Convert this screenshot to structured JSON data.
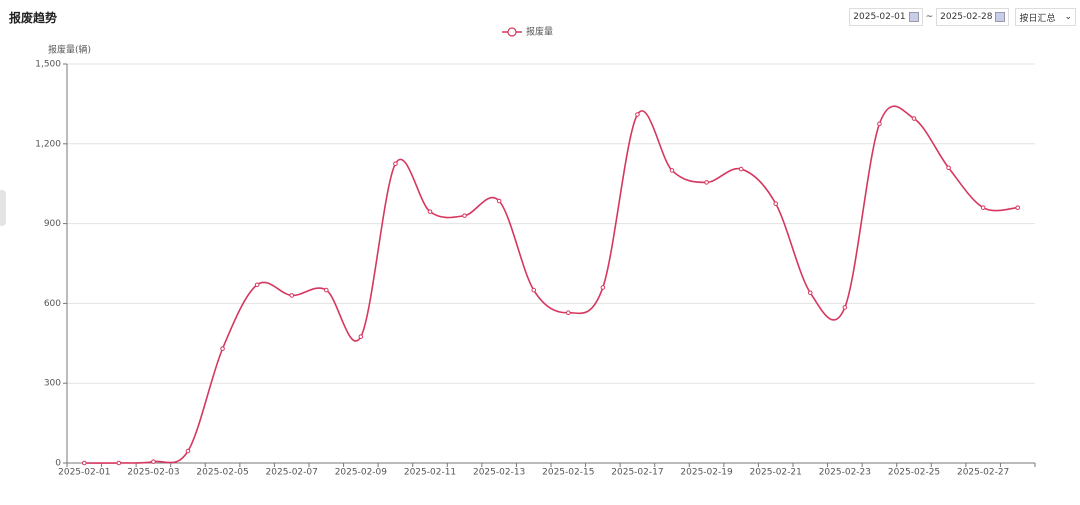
{
  "header": {
    "start_date": "2025-02-01",
    "separator": "~",
    "end_date": "2025-02-28",
    "aggregation": "按日汇总"
  },
  "chart_data": {
    "type": "line",
    "title": "报废趋势",
    "y_label": "报废量(辆)",
    "categories": [
      "2025-02-01",
      null,
      "2025-02-03",
      null,
      "2025-02-05",
      null,
      "2025-02-07",
      null,
      "2025-02-09",
      null,
      "2025-02-11",
      null,
      "2025-02-13",
      null,
      "2025-02-15",
      null,
      "2025-02-17",
      null,
      "2025-02-19",
      null,
      "2025-02-21",
      null,
      "2025-02-23",
      null,
      "2025-02-25",
      null,
      "2025-02-27",
      null
    ],
    "series": [
      {
        "name": "报废量",
        "color": "#d6375f",
        "values": [
          0,
          0,
          5,
          45,
          430,
          670,
          630,
          650,
          475,
          1125,
          945,
          930,
          985,
          650,
          565,
          660,
          1310,
          1100,
          1055,
          1105,
          975,
          640,
          585,
          1275,
          1295,
          1110,
          960,
          960
        ]
      }
    ],
    "ylim": [
      0,
      1500
    ],
    "yticks": [
      0,
      300,
      600,
      900,
      {
        "value": 1200,
        "label": "1,200"
      },
      {
        "value": 1500,
        "label": "1,500"
      }
    ],
    "grid": true,
    "smooth": true,
    "legend": "top"
  }
}
